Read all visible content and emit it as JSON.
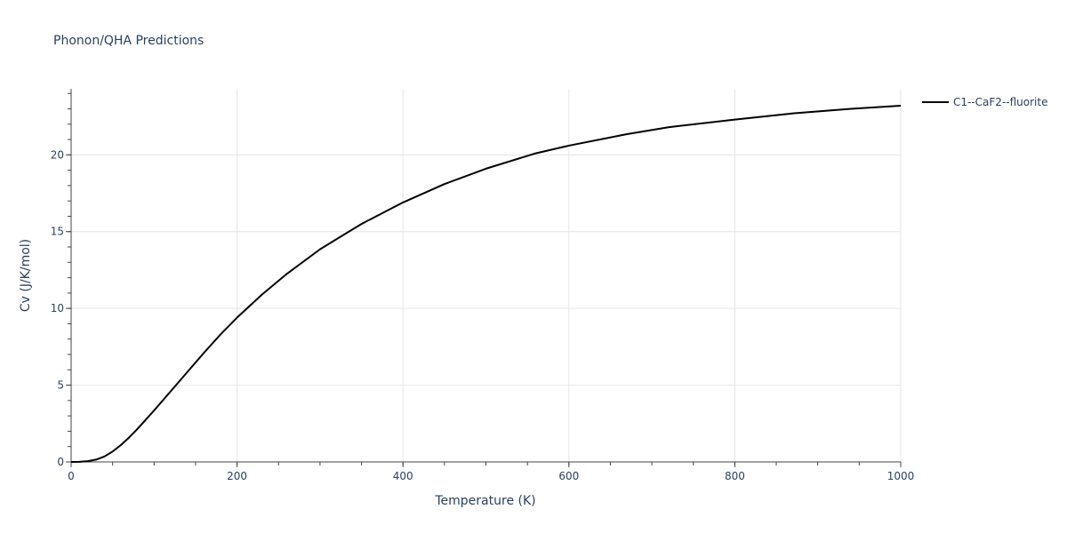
{
  "chart_data": {
    "type": "line",
    "title": "Phonon/QHA Predictions",
    "xlabel": "Temperature (K)",
    "ylabel": "Cv (J/K/mol)",
    "xlim": [
      0,
      1000
    ],
    "ylim": [
      0,
      24.3
    ],
    "x_ticks": [
      0,
      200,
      400,
      600,
      800,
      1000
    ],
    "y_ticks": [
      0,
      5,
      10,
      15,
      20
    ],
    "grid": true,
    "legend_position": "top-right",
    "series": [
      {
        "name": "C1--CaF2--fluorite",
        "color": "#000000",
        "x": [
          0,
          10,
          20,
          30,
          40,
          50,
          60,
          70,
          80,
          90,
          100,
          120,
          140,
          160,
          180,
          200,
          230,
          260,
          300,
          350,
          400,
          450,
          500,
          560,
          600,
          670,
          720,
          800,
          870,
          940,
          1000
        ],
        "y": [
          0,
          0.01,
          0.05,
          0.15,
          0.35,
          0.68,
          1.1,
          1.6,
          2.15,
          2.75,
          3.35,
          4.6,
          5.85,
          7.1,
          8.3,
          9.4,
          10.9,
          12.25,
          13.85,
          15.5,
          16.9,
          18.1,
          19.1,
          20.1,
          20.6,
          21.35,
          21.8,
          22.3,
          22.7,
          23.0,
          23.2
        ]
      }
    ]
  }
}
